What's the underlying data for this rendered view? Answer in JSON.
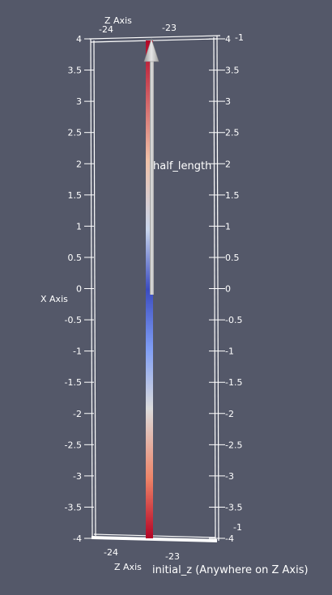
{
  "view": {
    "background_color": "#545869",
    "axis_color": "#ffffff"
  },
  "axes": {
    "x_axis_title": "X Axis",
    "z_axis_title_top": "Z Axis",
    "z_axis_title_bottom": "Z Axis",
    "left_ticks": [
      "4",
      "3.5",
      "3",
      "2.5",
      "2",
      "1.5",
      "1",
      "0.5",
      "0",
      "-0.5",
      "-1",
      "-1.5",
      "-2",
      "-2.5",
      "-3",
      "-3.5",
      "-4"
    ],
    "right_ticks": [
      "4",
      "3.5",
      "3",
      "2.5",
      "2",
      "1.5",
      "1",
      "0.5",
      "0",
      "-0.5",
      "-1",
      "-1.5",
      "-2",
      "-2.5",
      "-3",
      "-3.5",
      "-4"
    ],
    "right_extra_ticks": {
      "top": "-1",
      "bottom": "-1"
    },
    "z_ticks_top": [
      "-24",
      "-23"
    ],
    "z_ticks_bottom": [
      "-24",
      "-23"
    ]
  },
  "scene": {
    "rod_gradient": [
      {
        "offset": "0%",
        "color": "#b40426"
      },
      {
        "offset": "24%",
        "color": "#f0c1a8"
      },
      {
        "offset": "38%",
        "color": "#c9d6ec"
      },
      {
        "offset": "50%",
        "color": "#3b4cc0"
      },
      {
        "offset": "62%",
        "color": "#7f9df5"
      },
      {
        "offset": "74%",
        "color": "#dcdcdc"
      },
      {
        "offset": "88%",
        "color": "#ee8468"
      },
      {
        "offset": "100%",
        "color": "#b40426"
      }
    ],
    "arrow_color": "#d0d0d0",
    "arrow_label": "half_length",
    "bottom_label": "initial_z (Anywhere on Z Axis)"
  }
}
